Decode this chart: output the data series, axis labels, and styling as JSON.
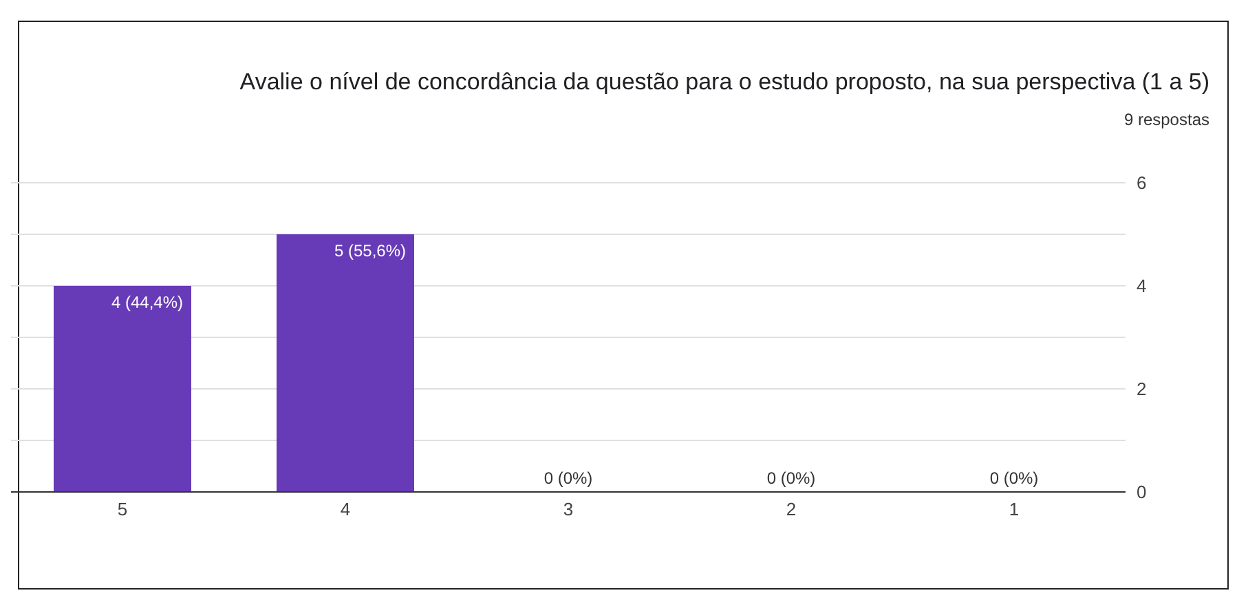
{
  "chart_data": {
    "type": "bar",
    "title": "Avalie o nível de concordância da questão para o estudo proposto, na sua perspectiva (1 a 5)",
    "subtitle": "9 respostas",
    "categories": [
      "5",
      "4",
      "3",
      "2",
      "1"
    ],
    "values": [
      4,
      5,
      0,
      0,
      0
    ],
    "value_labels": [
      "4 (44,4%)",
      "5 (55,6%)",
      "0 (0%)",
      "0 (0%)",
      "0 (0%)"
    ],
    "color": "#673ab7",
    "ylim": [
      0,
      6
    ],
    "yticks": [
      0,
      {
        "value": 1,
        "label": null
      },
      2,
      {
        "value": 3,
        "label": null
      },
      4,
      {
        "value": 5,
        "label": null
      },
      6
    ],
    "grid": "y"
  }
}
